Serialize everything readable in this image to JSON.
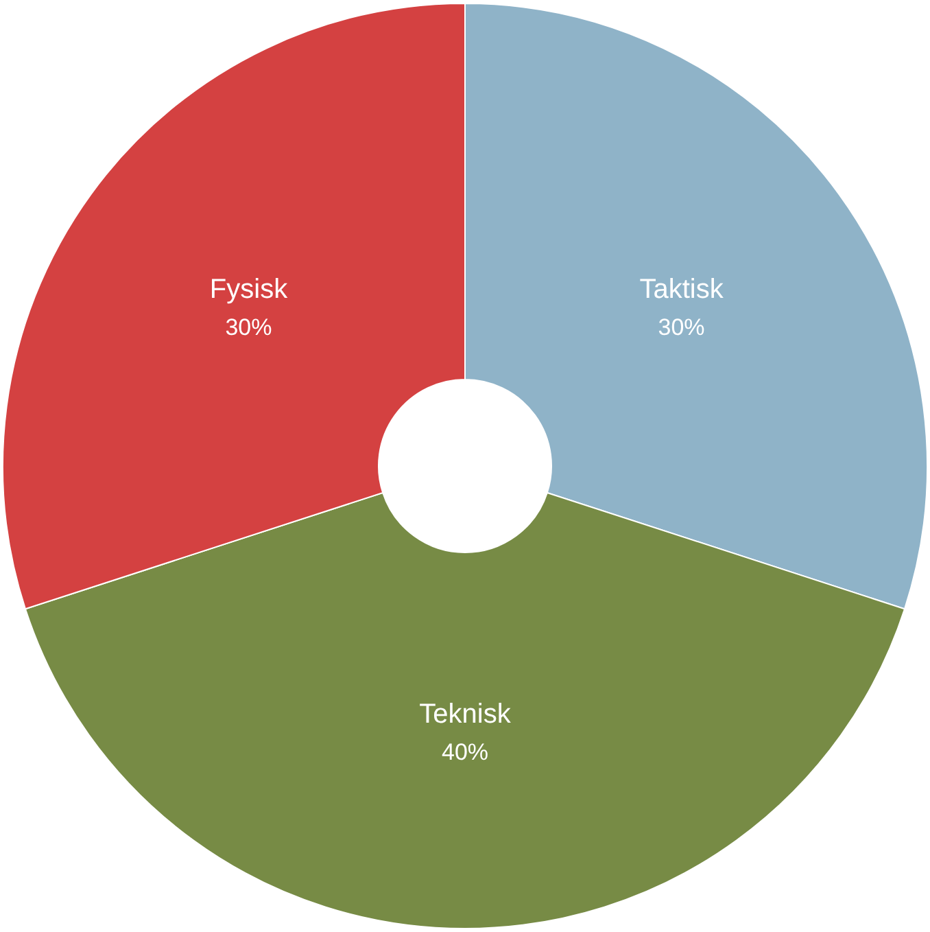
{
  "chart_data": {
    "type": "donut",
    "categories": [
      "Taktisk",
      "Teknisk",
      "Fysisk"
    ],
    "values": [
      30,
      40,
      30
    ],
    "colors": [
      "#8fb3c8",
      "#778b45",
      "#d44141"
    ],
    "value_labels": [
      "30%",
      "40%",
      "30%"
    ]
  }
}
